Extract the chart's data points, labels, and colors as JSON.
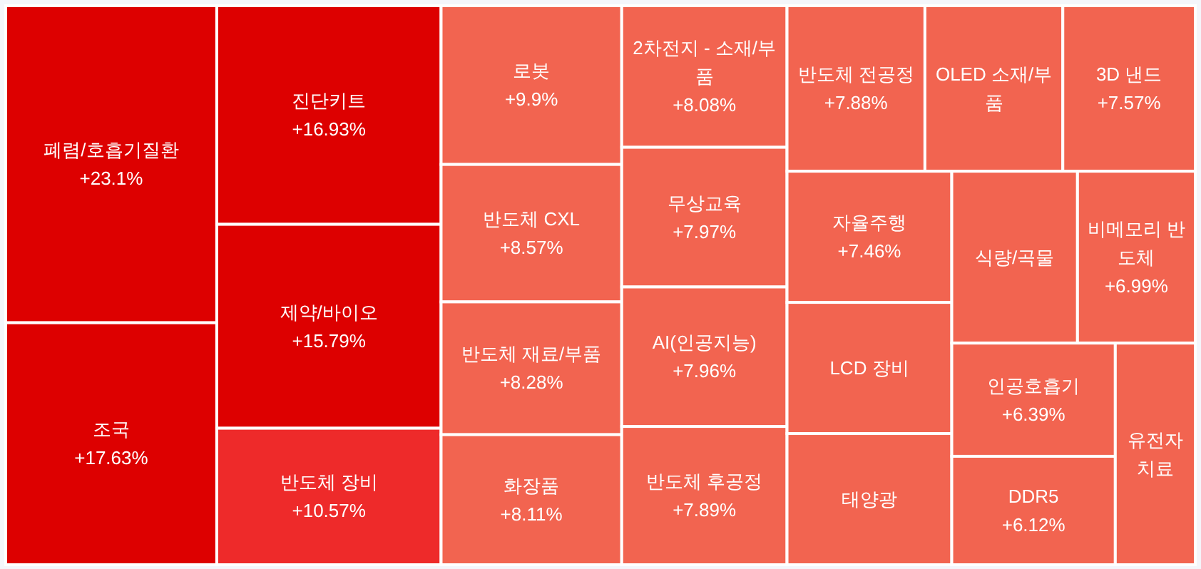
{
  "chart_data": {
    "type": "other",
    "categories": [
      "폐렴/호흡기질환",
      "조국",
      "진단키트",
      "제약/바이오",
      "반도체 장비",
      "로봇",
      "반도체 CXL",
      "반도체 재료/부품",
      "화장품",
      "2차전지 - 소재/부품",
      "무상교육",
      "AI(인공지능)",
      "반도체 후공정",
      "반도체 전공정",
      "OLED 소재/부품",
      "3D 낸드",
      "자율주행",
      "LCD 장비",
      "태양광",
      "식량/곡물",
      "비메모리 반도체",
      "인공호흡기",
      "DDR5",
      "유전자치료"
    ],
    "values": [
      23.1,
      17.63,
      16.93,
      15.79,
      10.57,
      9.9,
      8.57,
      8.28,
      8.11,
      8.08,
      7.97,
      7.96,
      7.89,
      7.88,
      null,
      7.57,
      7.46,
      null,
      null,
      null,
      6.99,
      6.39,
      6.12,
      null
    ],
    "value_labels": [
      "+23.1%",
      "+17.63%",
      "+16.93%",
      "+15.79%",
      "+10.57%",
      "+9.9%",
      "+8.57%",
      "+8.28%",
      "+8.11%",
      "+8.08%",
      "+7.97%",
      "+7.96%",
      "+7.89%",
      "+7.88%",
      null,
      "+7.57%",
      "+7.46%",
      null,
      null,
      null,
      "+6.99%",
      "+6.39%",
      "+6.12%",
      null
    ],
    "colors": [
      "#dd0000",
      "#dd0000",
      "#dd0000",
      "#dd0000",
      "#ee2a2a",
      "#f26450",
      "#f26450",
      "#f26450",
      "#f26450",
      "#f26450",
      "#f26450",
      "#f26450",
      "#f26450",
      "#f26450",
      "#f26450",
      "#f26450",
      "#f26450",
      "#f26450",
      "#f26450",
      "#f26450",
      "#f26450",
      "#f26450",
      "#f26450",
      "#f26450"
    ]
  }
}
